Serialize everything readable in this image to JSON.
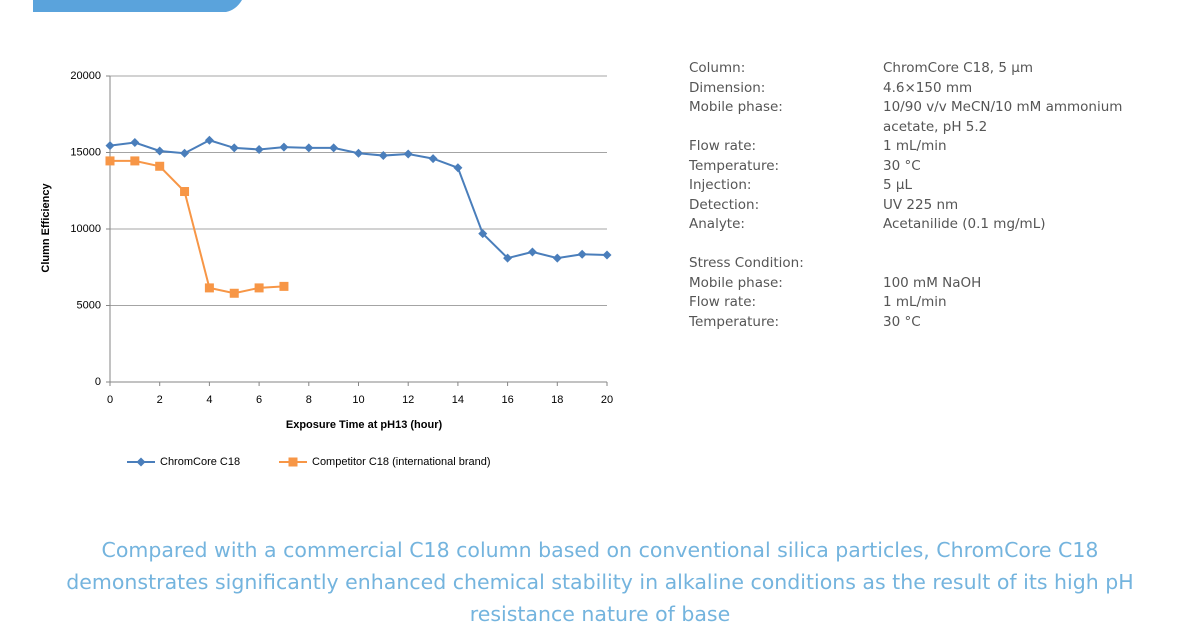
{
  "chart_data": {
    "type": "line",
    "y_label": "Clumn Efficiency",
    "x_label": "Exposure Time at pH13 (hour)",
    "x": [
      0,
      1,
      2,
      3,
      4,
      5,
      6,
      7,
      8,
      9,
      10,
      11,
      12,
      13,
      14,
      15,
      16,
      17,
      18,
      19,
      20
    ],
    "series": [
      {
        "name": "ChromCore C18",
        "color": "#4a7ebb",
        "marker": "diamond",
        "values": [
          15450,
          15650,
          15100,
          14950,
          15800,
          15300,
          15200,
          15350,
          15300,
          15300,
          14950,
          14800,
          14900,
          14600,
          14000,
          9700,
          8100,
          8500,
          8100,
          8350,
          8300
        ]
      },
      {
        "name": "Competitor C18 (international brand)",
        "color": "#f79646",
        "marker": "square",
        "values": [
          14450,
          14450,
          14100,
          12450,
          6150,
          5800,
          6150,
          6250,
          null,
          null,
          null,
          null,
          null,
          null,
          null,
          null,
          null,
          null,
          null,
          null,
          null
        ]
      }
    ],
    "xlim": [
      0,
      20
    ],
    "xticks": [
      0,
      2,
      4,
      6,
      8,
      10,
      12,
      14,
      16,
      18,
      20
    ],
    "ylim": [
      0,
      20000
    ],
    "yticks": [
      0,
      5000,
      10000,
      15000,
      20000
    ],
    "grid": true,
    "legend": "bottom"
  },
  "conditions": {
    "rows": [
      {
        "label": "Column:",
        "value": "ChromCore C18, 5 µm"
      },
      {
        "label": "Dimension:",
        "value": "4.6×150 mm"
      },
      {
        "label": "Mobile phase:",
        "value": "10/90 v/v MeCN/10 mM ammonium acetate, pH 5.2"
      },
      {
        "label": "Flow rate:",
        "value": "1 mL/min"
      },
      {
        "label": "Temperature:",
        "value": "30 °C"
      },
      {
        "label": "Injection:",
        "value": "5 µL"
      },
      {
        "label": "Detection:",
        "value": "UV 225 nm"
      },
      {
        "label": "Analyte:",
        "value": "Acetanilide (0.1 mg/mL)"
      }
    ],
    "stress_title": "Stress Condition:",
    "stress_rows": [
      {
        "label": "Mobile phase:",
        "value": "100 mM NaOH"
      },
      {
        "label": "Flow rate:",
        "value": "1 mL/min"
      },
      {
        "label": "Temperature:",
        "value": "30 °C"
      }
    ]
  },
  "caption": "Compared with a commercial C18 column based on conventional silica particles, ChromCore C18 demonstrates significantly enhanced chemical stability in alkaline conditions as the result of its high pH resistance nature of base"
}
